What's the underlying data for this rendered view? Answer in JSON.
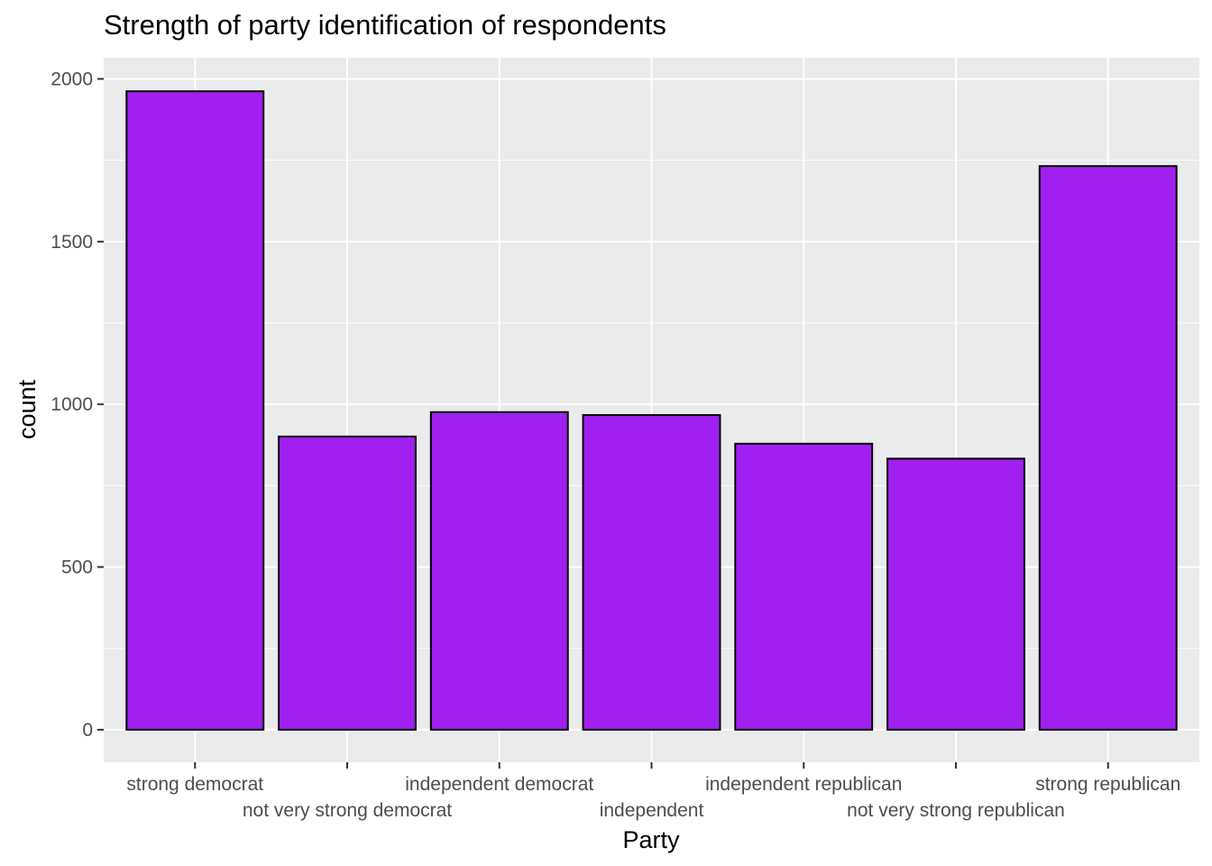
{
  "chart_data": {
    "type": "bar",
    "title": "Strength of party identification of respondents",
    "xlabel": "Party",
    "ylabel": "count",
    "categories": [
      "strong democrat",
      "not very strong democrat",
      "independent democrat",
      "independent",
      "independent republican",
      "not very strong republican",
      "strong republican"
    ],
    "values": [
      1962,
      901,
      976,
      967,
      879,
      833,
      1732
    ],
    "ylim": [
      -100,
      2065
    ],
    "yticks": [
      0,
      500,
      1000,
      1500,
      2000
    ],
    "bar_color": "#a020f0",
    "bar_outline": "#000000",
    "panel_background": "#ebebeb",
    "grid": true,
    "legend": "none"
  }
}
